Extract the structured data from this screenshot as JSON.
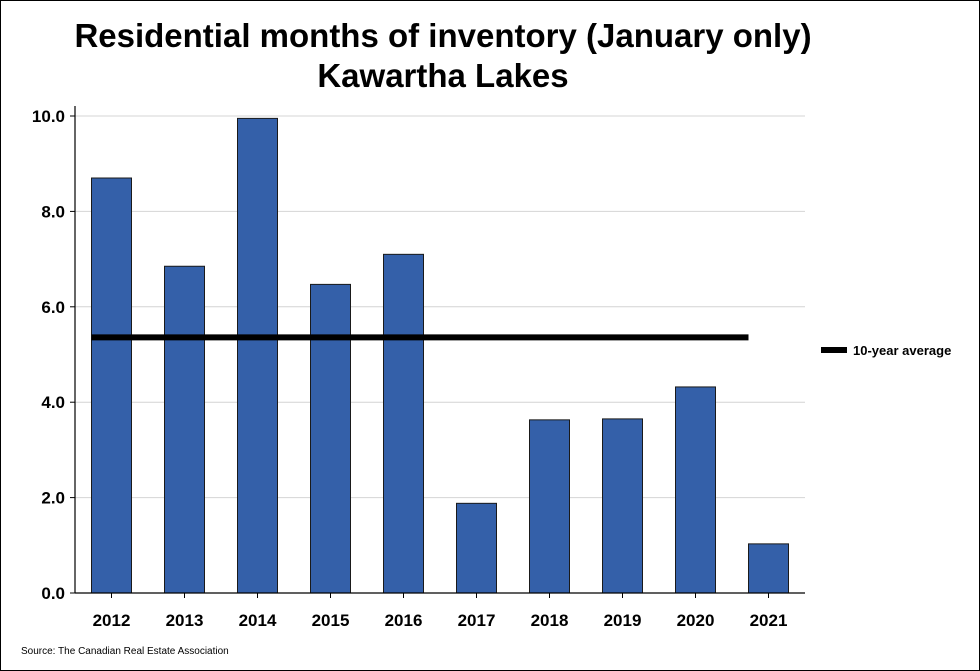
{
  "chart_data": {
    "type": "bar",
    "title": "Residential months of inventory (January only)",
    "subtitle": "Kawartha Lakes",
    "categories": [
      "2012",
      "2013",
      "2014",
      "2015",
      "2016",
      "2017",
      "2018",
      "2019",
      "2020",
      "2021"
    ],
    "series": [
      {
        "name": "",
        "values": [
          8.7,
          6.85,
          9.95,
          6.47,
          7.1,
          1.88,
          3.63,
          3.65,
          4.32,
          1.03
        ],
        "color": "#3460a9"
      }
    ],
    "reference_line": {
      "name": "10-year average",
      "value": 5.36,
      "color": "#000000"
    },
    "ylim": [
      0,
      10
    ],
    "yticks": [
      0,
      2,
      4,
      6,
      8,
      10
    ],
    "ytick_labels": [
      "0.0",
      "2.0",
      "4.0",
      "6.0",
      "8.0",
      "10.0"
    ],
    "xlabel": "",
    "ylabel": "",
    "grid": true,
    "legend_position": "right",
    "source": "Source: The Canadian Real Estate Association"
  }
}
